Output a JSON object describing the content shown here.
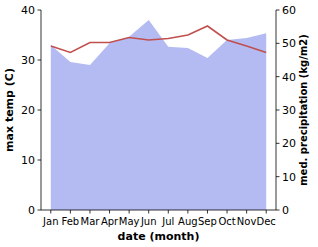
{
  "chart_data": {
    "type": "line",
    "categories": [
      "Jan",
      "Feb",
      "Mar",
      "Apr",
      "May",
      "Jun",
      "Jul",
      "Aug",
      "Sep",
      "Oct",
      "Nov",
      "Dec"
    ],
    "x_label": "date (month)",
    "y_label": "max temp (C)",
    "y2_label": "med. precipitation (kg/m2)",
    "ylim": [
      0,
      40
    ],
    "yticks": [
      0,
      10,
      20,
      30,
      40
    ],
    "y2lim": [
      0,
      60
    ],
    "y2ticks": [
      0,
      10,
      20,
      30,
      40,
      50,
      60
    ],
    "series": [
      {
        "name": "med. precipitation",
        "type": "area",
        "axis": "y2",
        "color": "#b4bbf3",
        "values": [
          49.5,
          44.4,
          43.5,
          50,
          52,
          57,
          49,
          48.6,
          45.6,
          51,
          51.6,
          53
        ]
      },
      {
        "name": "max temp",
        "type": "line",
        "axis": "y",
        "color": "#c0504d",
        "values": [
          32.8,
          31.5,
          33.5,
          33.5,
          34.5,
          34,
          34.3,
          35,
          36.8,
          34,
          32.8,
          31.5
        ]
      }
    ]
  }
}
